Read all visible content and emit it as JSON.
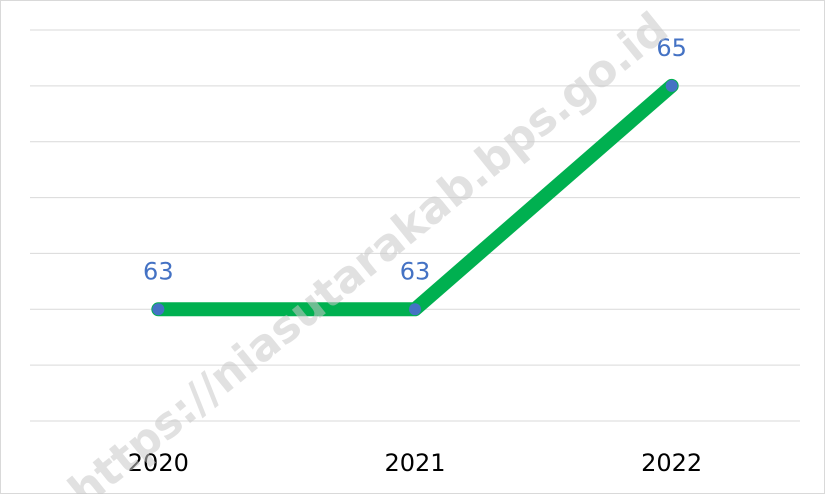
{
  "chart_data": {
    "type": "line",
    "categories": [
      "2020",
      "2021",
      "2022"
    ],
    "series": [
      {
        "name": null,
        "color": "#00b050",
        "marker_color": "#4472c4",
        "values": [
          63,
          63,
          65
        ]
      }
    ],
    "ylim": [
      62,
      65.5
    ],
    "yticks": [
      62,
      62.5,
      63,
      63.5,
      64,
      64.5,
      65,
      65.5
    ],
    "grid": true,
    "watermark": "https://niasutarakab.bps.go.id"
  }
}
